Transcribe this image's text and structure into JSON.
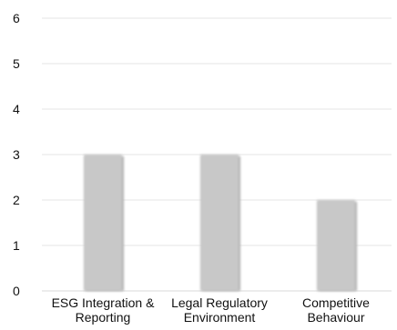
{
  "chart_data": {
    "type": "bar",
    "categories": [
      [
        "ESG Integration &",
        "Reporting"
      ],
      [
        "Legal Regulatory",
        "Environment"
      ],
      [
        "Competitive",
        "Behaviour"
      ]
    ],
    "values": [
      3,
      3,
      2
    ],
    "ylim": [
      0,
      6
    ],
    "yticks": [
      0,
      1,
      2,
      3,
      4,
      5,
      6
    ],
    "grid": true,
    "legend": "none",
    "colors": {
      "bar": "#c8c8c8",
      "bar_shadow": "#b4b4b4",
      "gridline": "#e6e6e6",
      "axis": "#d9d9d9",
      "text": "#111111"
    }
  }
}
